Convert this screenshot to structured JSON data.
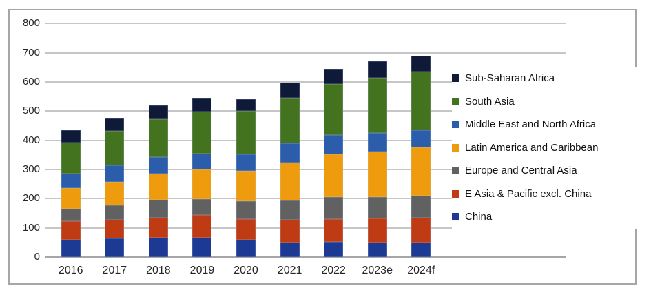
{
  "figure": {
    "frame_border_color": "#a6a6a6",
    "gridline_color": "#c6c6c6",
    "axis_line_color": "#a6a6a6",
    "background_color": "#ffffff",
    "text_color": "#262626"
  },
  "chart_data": {
    "type": "bar",
    "stacked": true,
    "title": "",
    "xlabel": "",
    "ylabel": "",
    "ylim": [
      0,
      800
    ],
    "y_ticks": [
      0,
      100,
      200,
      300,
      400,
      500,
      600,
      700,
      800
    ],
    "grid": true,
    "legend_position": "right",
    "categories": [
      "2016",
      "2017",
      "2018",
      "2019",
      "2020",
      "2021",
      "2022",
      "2023e",
      "2024f"
    ],
    "series": [
      {
        "name": "China",
        "color": "#1C3A94",
        "values": [
          60,
          63,
          66,
          67,
          58,
          50,
          51,
          50,
          49
        ]
      },
      {
        "name": "E Asia & Pacific excl. China",
        "color": "#BE3B14",
        "values": [
          62,
          65,
          68,
          76,
          72,
          78,
          78,
          83,
          85
        ]
      },
      {
        "name": "Europe and Central Asia",
        "color": "#616161",
        "values": [
          43,
          50,
          62,
          55,
          61,
          65,
          77,
          73,
          77
        ]
      },
      {
        "name": "Latin America and Caribbean",
        "color": "#EE9C0D",
        "values": [
          71,
          80,
          90,
          102,
          104,
          130,
          147,
          156,
          165
        ]
      },
      {
        "name": "Middle East and North Africa",
        "color": "#2B5DAB",
        "values": [
          49,
          57,
          57,
          54,
          56,
          67,
          65,
          63,
          59
        ]
      },
      {
        "name": "South Asia",
        "color": "#44731F",
        "values": [
          107,
          117,
          129,
          144,
          149,
          155,
          175,
          190,
          201
        ]
      },
      {
        "name": "Sub-Saharan Africa",
        "color": "#0E1A38",
        "values": [
          43,
          43,
          48,
          47,
          42,
          52,
          52,
          55,
          54
        ]
      }
    ],
    "stack_order": "bottom-to-top follows series array order",
    "legend_order_top_to_bottom": [
      "Sub-Saharan Africa",
      "South Asia",
      "Middle East and North Africa",
      "Latin America and Caribbean",
      "Europe and Central Asia",
      "E Asia & Pacific excl. China",
      "China"
    ],
    "totals": [
      435,
      475,
      520,
      545,
      542,
      597,
      645,
      670,
      690
    ]
  }
}
